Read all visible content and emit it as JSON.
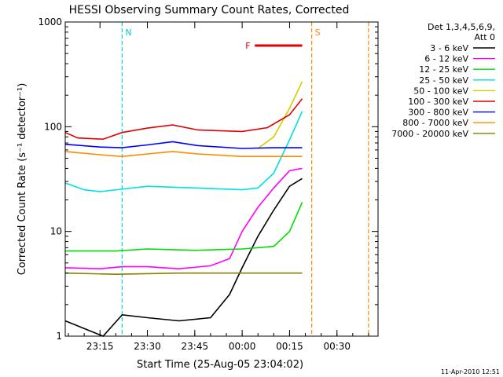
{
  "chart_data": {
    "type": "line",
    "title": "HESSI Observing Summary Count Rates, Corrected",
    "xlabel": "Start Time (25-Aug-05 23:04:02)",
    "ylabel": "Corrected Count Rate (s⁻¹ detector⁻¹)",
    "xlim": [
      "23:04",
      "00:43"
    ],
    "ylim": [
      1,
      1000
    ],
    "yscale": "log",
    "x_ticks": [
      "23:15",
      "23:30",
      "23:45",
      "00:00",
      "00:15",
      "00:30"
    ],
    "y_ticks": [
      "1",
      "10",
      "100",
      "1000"
    ],
    "legend_header": [
      "Det 1,3,4,5,6,9,",
      "Att 0"
    ],
    "legend_position": "right",
    "timestamp": "11-Apr-2010 12:51",
    "flags": [
      {
        "label": "N",
        "color": "#00d0d0",
        "lines": [
          "23:22"
        ]
      },
      {
        "label": "F",
        "color": "#e00000",
        "range": [
          "00:04",
          "00:19"
        ]
      },
      {
        "label": "S",
        "color": "#ff8800",
        "lines": [
          "00:22",
          "00:40"
        ]
      }
    ],
    "series": [
      {
        "name": "3 - 6 keV",
        "color": "#000000",
        "x": [
          "23:04",
          "23:16",
          "23:22",
          "23:30",
          "23:40",
          "23:50",
          "23:56",
          "00:00",
          "00:05",
          "00:10",
          "00:15",
          "00:19"
        ],
        "values": [
          1.4,
          1.0,
          1.6,
          1.5,
          1.4,
          1.5,
          2.5,
          4.5,
          9,
          16,
          27,
          32
        ]
      },
      {
        "name": "6 - 12 keV",
        "color": "#ff00ff",
        "x": [
          "23:04",
          "23:15",
          "23:22",
          "23:30",
          "23:40",
          "23:50",
          "23:56",
          "00:00",
          "00:05",
          "00:10",
          "00:15",
          "00:19"
        ],
        "values": [
          4.5,
          4.4,
          4.6,
          4.6,
          4.4,
          4.7,
          5.5,
          10,
          17,
          26,
          38,
          40
        ]
      },
      {
        "name": "12 - 25 keV",
        "color": "#00dd00",
        "x": [
          "23:04",
          "23:20",
          "23:30",
          "23:45",
          "00:00",
          "00:10",
          "00:15",
          "00:19"
        ],
        "values": [
          6.5,
          6.5,
          6.8,
          6.6,
          6.8,
          7.2,
          10,
          19
        ]
      },
      {
        "name": "25 - 50 keV",
        "color": "#00e0e0",
        "x": [
          "23:04",
          "23:10",
          "23:15",
          "23:30",
          "23:45",
          "00:00",
          "00:05",
          "00:10",
          "00:15",
          "00:19"
        ],
        "values": [
          29,
          25,
          24,
          27,
          26,
          25,
          26,
          36,
          75,
          140
        ]
      },
      {
        "name": "50 - 100 keV",
        "color": "#d0d000",
        "x": [
          "00:05",
          "00:10",
          "00:15",
          "00:19"
        ],
        "values": [
          62,
          80,
          150,
          270
        ]
      },
      {
        "name": "100 - 300 keV",
        "color": "#e00000",
        "x": [
          "23:04",
          "23:08",
          "23:16",
          "23:22",
          "23:30",
          "23:38",
          "23:46",
          "00:00",
          "00:08",
          "00:15",
          "00:19"
        ],
        "values": [
          88,
          78,
          76,
          88,
          97,
          104,
          93,
          90,
          98,
          130,
          185
        ]
      },
      {
        "name": "300 - 800 keV",
        "color": "#0000ff",
        "x": [
          "23:04",
          "23:15",
          "23:22",
          "23:30",
          "23:38",
          "23:46",
          "00:00",
          "00:10",
          "00:19"
        ],
        "values": [
          68,
          64,
          63,
          67,
          72,
          66,
          62,
          63,
          63
        ]
      },
      {
        "name": "800 - 7000 keV",
        "color": "#ff8800",
        "x": [
          "23:04",
          "23:15",
          "23:22",
          "23:30",
          "23:38",
          "23:46",
          "00:00",
          "00:10",
          "00:19"
        ],
        "values": [
          58,
          54,
          52,
          55,
          58,
          55,
          52,
          52,
          52
        ]
      },
      {
        "name": "7000 - 20000 keV",
        "color": "#888000",
        "x": [
          "23:04",
          "23:20",
          "23:40",
          "00:00",
          "00:19"
        ],
        "values": [
          4.0,
          3.9,
          4.0,
          4.0,
          4.0
        ]
      }
    ]
  }
}
